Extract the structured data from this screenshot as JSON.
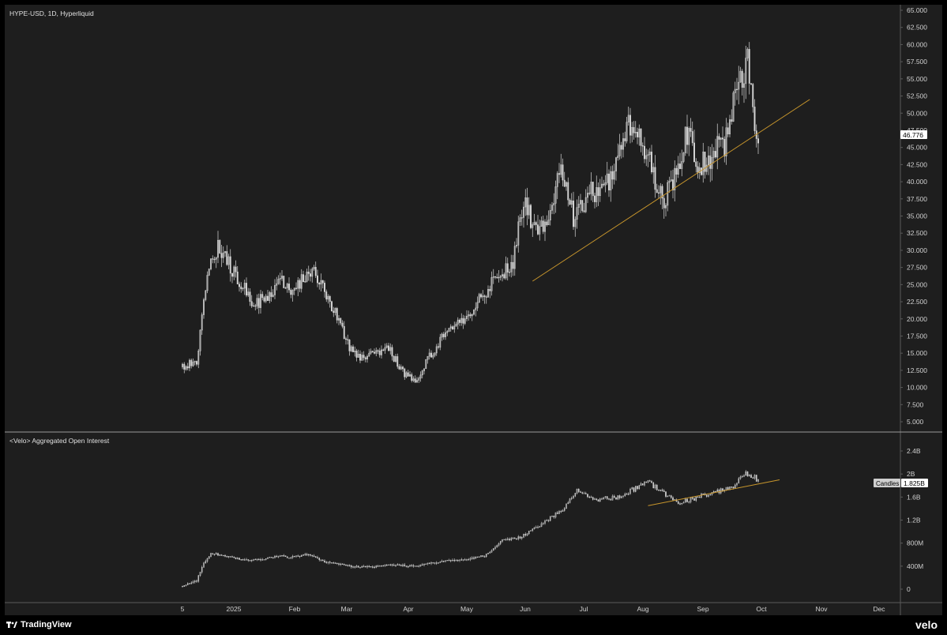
{
  "main_title": "HYPE-USD, 1D, Hyperliquid",
  "oi_title": "<Velo> Aggregated Open Interest",
  "price_badge": "46.776",
  "oi_badge_label": "Candles",
  "oi_badge_value": "1.825B",
  "footer": {
    "tradingview": "TradingView",
    "velo": "velo"
  },
  "colors": {
    "background": "#1e1e1e",
    "candle": "#d8d8d8",
    "trendline": "#c8962c",
    "axis_line": "#5a5a5a"
  },
  "chart_data": [
    {
      "type": "candlestick",
      "title": "HYPE-USD, 1D, Hyperliquid",
      "ylim": [
        2.5,
        65
      ],
      "y_ticks": [
        "65.000",
        "62.500",
        "60.000",
        "57.500",
        "55.000",
        "52.500",
        "50.000",
        "47.500",
        "45.000",
        "42.500",
        "40.000",
        "37.500",
        "35.000",
        "32.500",
        "30.000",
        "27.500",
        "25.000",
        "22.500",
        "20.000",
        "17.500",
        "15.000",
        "12.500",
        "10.000",
        "7.500",
        "5.000"
      ],
      "x_ticks": [
        "5",
        "2025",
        "Feb",
        "Mar",
        "Apr",
        "May",
        "Jun",
        "Jul",
        "Aug",
        "Sep",
        "Oct",
        "Nov",
        "Dec"
      ],
      "last_price": 46.776,
      "price_path": [
        [
          0,
          13
        ],
        [
          8,
          14
        ],
        [
          14,
          26
        ],
        [
          20,
          31
        ],
        [
          24,
          29
        ],
        [
          34,
          25
        ],
        [
          40,
          22
        ],
        [
          45,
          23
        ],
        [
          50,
          24
        ],
        [
          55,
          26
        ],
        [
          60,
          24
        ],
        [
          68,
          26
        ],
        [
          75,
          27
        ],
        [
          80,
          24
        ],
        [
          86,
          21
        ],
        [
          94,
          16
        ],
        [
          100,
          14
        ],
        [
          108,
          15
        ],
        [
          115,
          16
        ],
        [
          125,
          12
        ],
        [
          132,
          11
        ],
        [
          138,
          14
        ],
        [
          145,
          17
        ],
        [
          155,
          19
        ],
        [
          163,
          21
        ],
        [
          170,
          24
        ],
        [
          178,
          26
        ],
        [
          186,
          28
        ],
        [
          192,
          38
        ],
        [
          198,
          33
        ],
        [
          205,
          34
        ],
        [
          212,
          42
        ],
        [
          220,
          35
        ],
        [
          228,
          38
        ],
        [
          235,
          39
        ],
        [
          242,
          40
        ],
        [
          250,
          48
        ],
        [
          256,
          46
        ],
        [
          262,
          44
        ],
        [
          270,
          37
        ],
        [
          276,
          40
        ],
        [
          284,
          47
        ],
        [
          290,
          42
        ],
        [
          298,
          44
        ],
        [
          306,
          46
        ],
        [
          312,
          54
        ],
        [
          318,
          57
        ],
        [
          320,
          52
        ],
        [
          324,
          47
        ]
      ],
      "trendline": [
        [
          197,
          25.5
        ],
        [
          318,
          45.5
        ],
        [
          353,
          52
        ]
      ]
    },
    {
      "type": "candlestick",
      "title": "<Velo> Aggregated Open Interest",
      "ylim": [
        0,
        2.6
      ],
      "y_ticks": [
        "2.4B",
        "2B",
        "1.6B",
        "1.2B",
        "800M",
        "400M",
        "0"
      ],
      "last_value": "1.825B",
      "oi_path": [
        [
          0,
          0.05
        ],
        [
          8,
          0.15
        ],
        [
          12,
          0.45
        ],
        [
          16,
          0.62
        ],
        [
          25,
          0.58
        ],
        [
          35,
          0.5
        ],
        [
          45,
          0.52
        ],
        [
          55,
          0.58
        ],
        [
          60,
          0.55
        ],
        [
          70,
          0.6
        ],
        [
          75,
          0.55
        ],
        [
          80,
          0.48
        ],
        [
          90,
          0.42
        ],
        [
          100,
          0.38
        ],
        [
          110,
          0.4
        ],
        [
          120,
          0.42
        ],
        [
          130,
          0.4
        ],
        [
          140,
          0.45
        ],
        [
          150,
          0.5
        ],
        [
          160,
          0.52
        ],
        [
          170,
          0.58
        ],
        [
          175,
          0.7
        ],
        [
          180,
          0.85
        ],
        [
          190,
          0.9
        ],
        [
          198,
          1.05
        ],
        [
          205,
          1.2
        ],
        [
          215,
          1.4
        ],
        [
          222,
          1.75
        ],
        [
          232,
          1.55
        ],
        [
          245,
          1.6
        ],
        [
          255,
          1.75
        ],
        [
          262,
          1.85
        ],
        [
          272,
          1.65
        ],
        [
          280,
          1.5
        ],
        [
          290,
          1.6
        ],
        [
          300,
          1.7
        ],
        [
          310,
          1.75
        ],
        [
          316,
          2.0
        ],
        [
          322,
          1.95
        ],
        [
          325,
          1.825
        ]
      ],
      "trendline": [
        [
          262,
          1.45
        ],
        [
          324,
          1.8
        ],
        [
          336,
          1.9
        ]
      ]
    }
  ]
}
